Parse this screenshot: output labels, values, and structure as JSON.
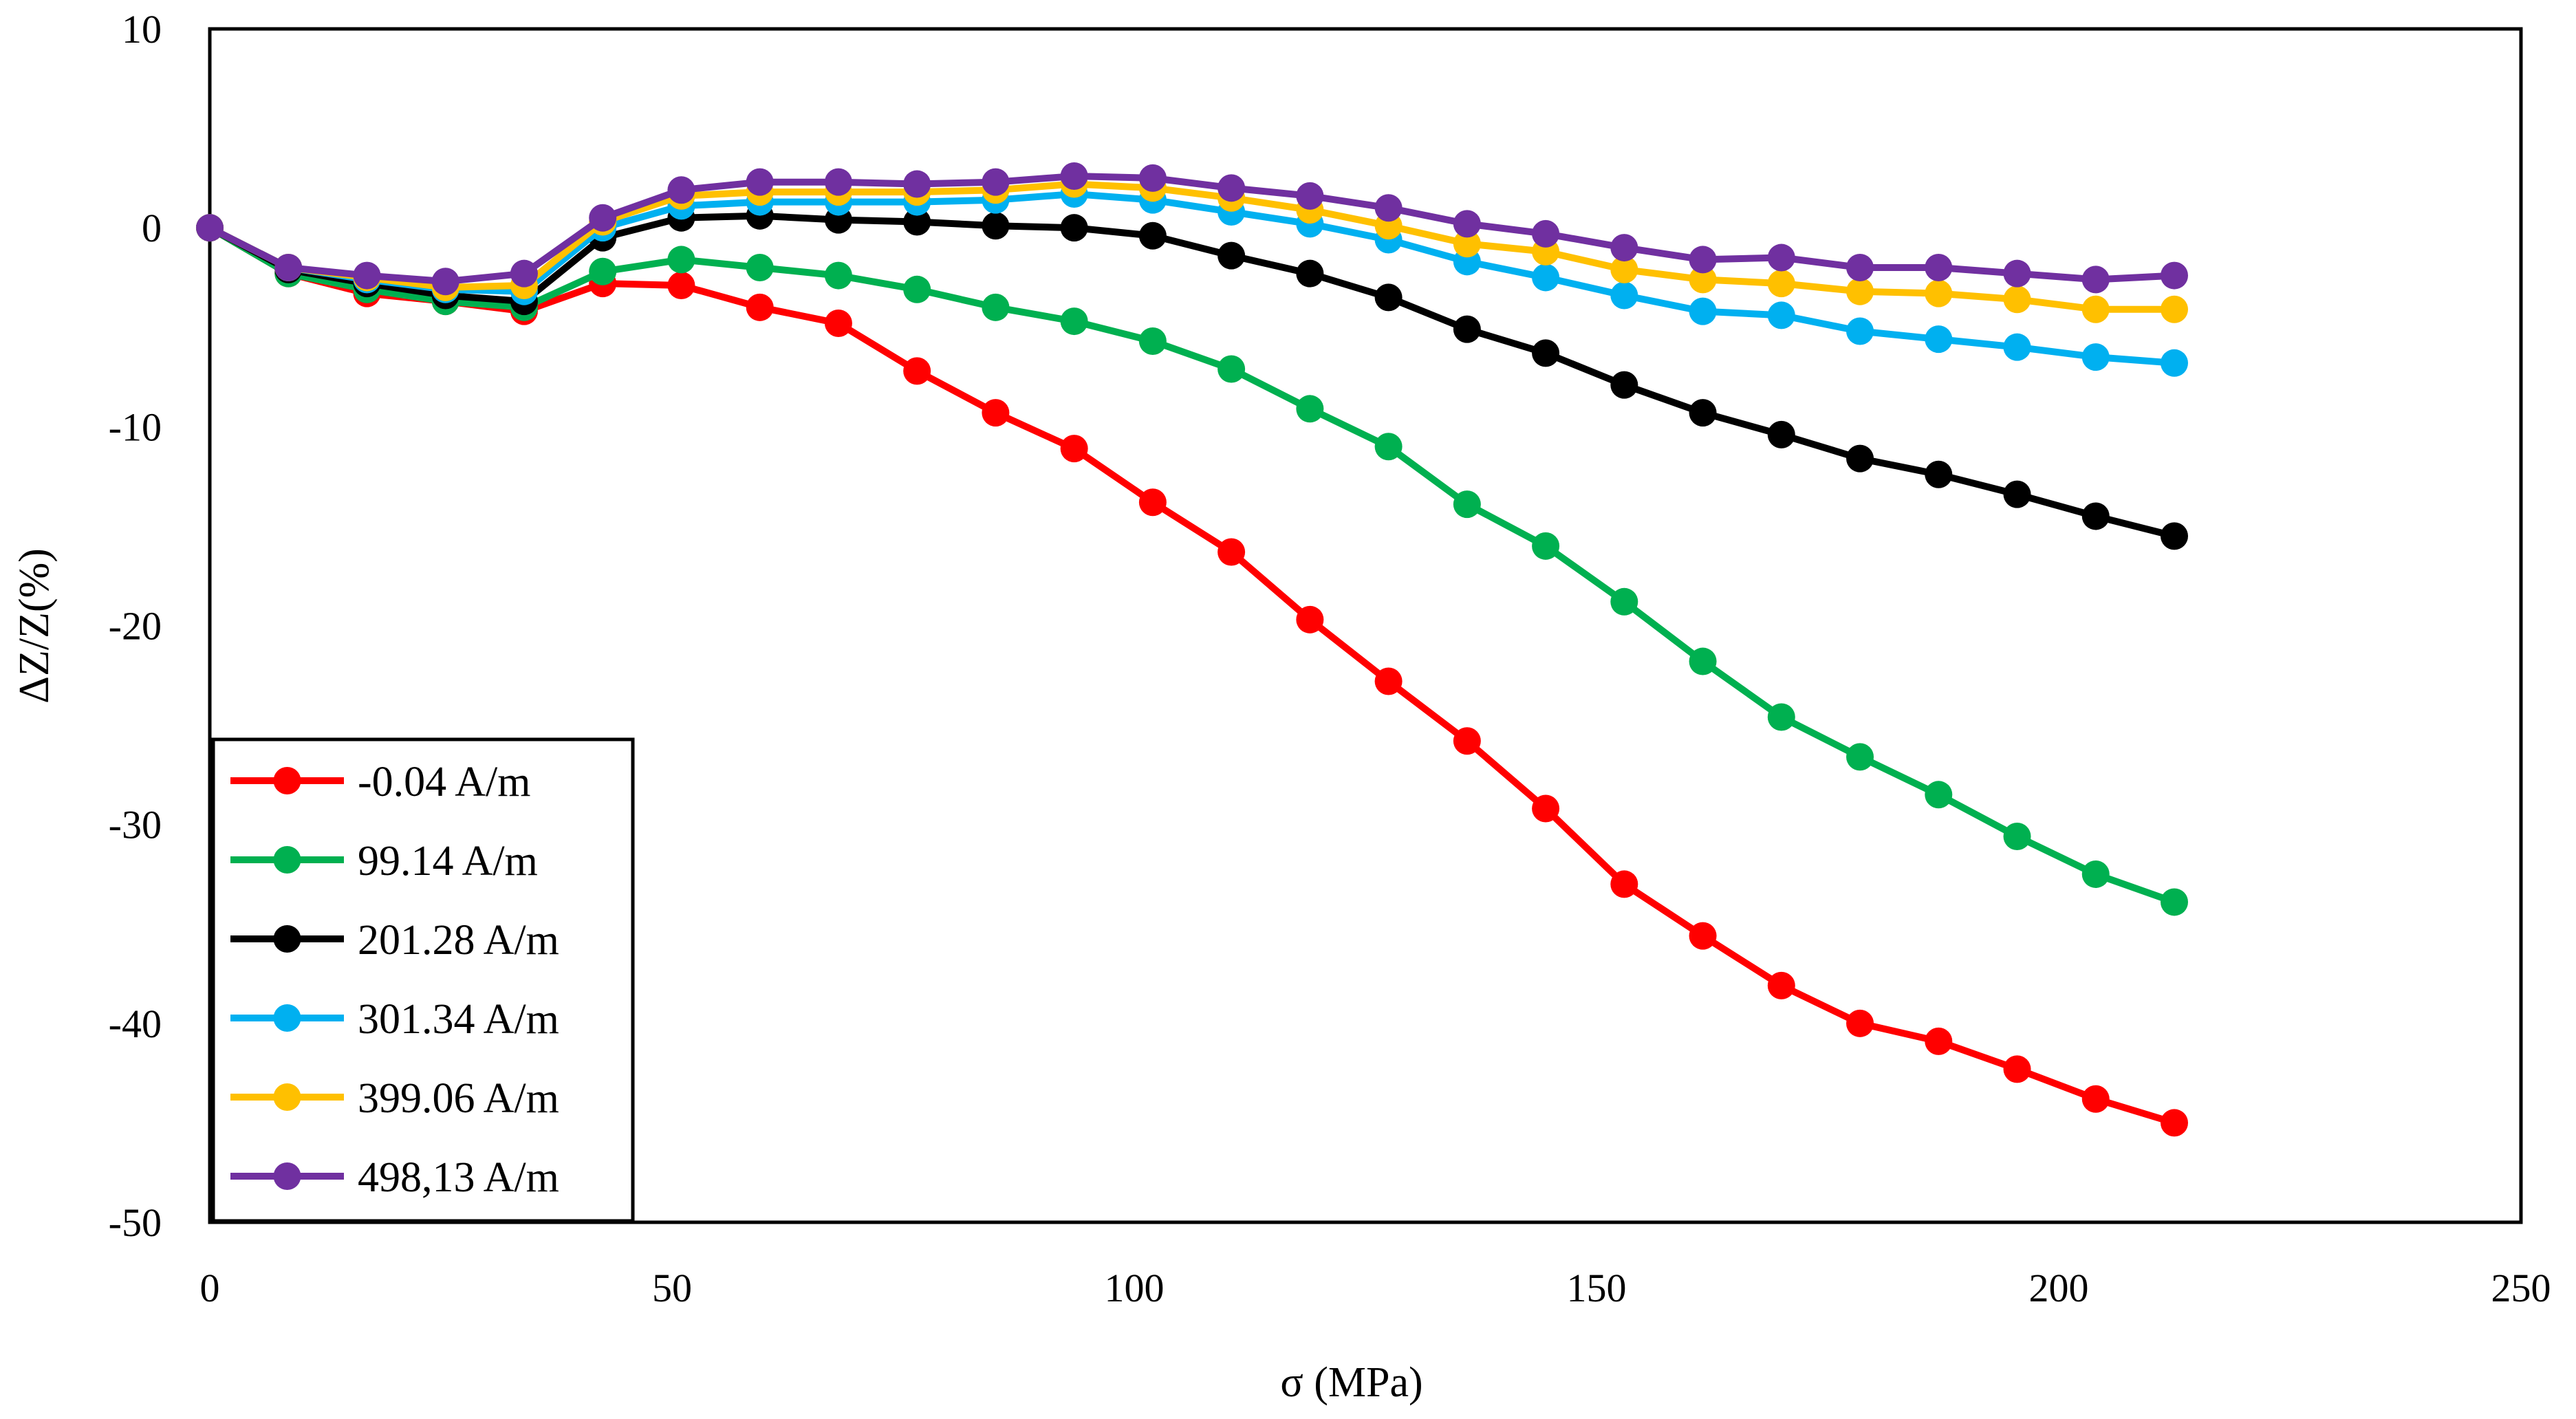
{
  "chart_data": {
    "type": "line",
    "xlabel": "σ (MPa)",
    "ylabel": "ΔZ/Z(%)",
    "xlim": [
      0,
      250
    ],
    "ylim": [
      -50,
      10
    ],
    "xticks": [
      0,
      50,
      100,
      150,
      200,
      250
    ],
    "yticks": [
      10,
      0,
      -10,
      -20,
      -30,
      -40,
      -50
    ],
    "xtick_labels": [
      "0",
      "50",
      "100",
      "150",
      "200",
      "250"
    ],
    "ytick_labels": [
      "10",
      "0",
      "-10",
      "-20",
      "-30",
      "-40",
      "-50"
    ],
    "grid": false,
    "legend_position": "bottom-left",
    "x": [
      0,
      8.5,
      17,
      25.5,
      34,
      42.5,
      51,
      59.5,
      68,
      76.5,
      85,
      93.5,
      102,
      110.5,
      119,
      127.5,
      136,
      144.5,
      153,
      161.5,
      170,
      178.5,
      187,
      195.5,
      204,
      212.5
    ],
    "series": [
      {
        "name": "-0.04 A/m",
        "color": "#ff0000",
        "values": [
          0,
          -2.3,
          -3.3,
          -3.7,
          -4.2,
          -2.8,
          -2.9,
          -4.0,
          -4.8,
          -7.2,
          -9.3,
          -11.1,
          -13.8,
          -16.3,
          -19.7,
          -22.8,
          -25.8,
          -29.2,
          -33.0,
          -35.6,
          -38.1,
          -40.0,
          -40.9,
          -42.3,
          -43.8,
          -45.0
        ]
      },
      {
        "name": "99.14 A/m",
        "color": "#00b050",
        "values": [
          0,
          -2.3,
          -3.1,
          -3.7,
          -4.0,
          -2.2,
          -1.6,
          -2.0,
          -2.4,
          -3.1,
          -4.0,
          -4.7,
          -5.7,
          -7.1,
          -9.1,
          -11.0,
          -13.9,
          -16.0,
          -18.8,
          -21.8,
          -24.6,
          -26.6,
          -28.5,
          -30.6,
          -32.5,
          -33.9
        ]
      },
      {
        "name": "201.28 A/m",
        "color": "#000000",
        "values": [
          0,
          -2.1,
          -2.8,
          -3.4,
          -3.7,
          -0.5,
          0.5,
          0.6,
          0.4,
          0.3,
          0.1,
          0.0,
          -0.4,
          -1.4,
          -2.3,
          -3.5,
          -5.1,
          -6.3,
          -7.9,
          -9.3,
          -10.4,
          -11.6,
          -12.4,
          -13.4,
          -14.5,
          -15.5
        ]
      },
      {
        "name": "301.34 A/m",
        "color": "#00b0f0",
        "values": [
          0,
          -2.0,
          -2.6,
          -3.1,
          -3.2,
          0.0,
          1.1,
          1.3,
          1.3,
          1.3,
          1.4,
          1.7,
          1.4,
          0.8,
          0.2,
          -0.6,
          -1.7,
          -2.5,
          -3.4,
          -4.2,
          -4.4,
          -5.2,
          -5.6,
          -6.0,
          -6.5,
          -6.8
        ]
      },
      {
        "name": "399.06 A/m",
        "color": "#ffc000",
        "values": [
          0,
          -2.0,
          -2.5,
          -3.0,
          -2.9,
          0.3,
          1.6,
          1.8,
          1.8,
          1.8,
          1.9,
          2.2,
          2.0,
          1.5,
          0.9,
          0.1,
          -0.8,
          -1.2,
          -2.1,
          -2.6,
          -2.8,
          -3.2,
          -3.3,
          -3.6,
          -4.1,
          -4.1
        ]
      },
      {
        "name": "498,13 A/m",
        "color": "#7030a0",
        "values": [
          0,
          -2.0,
          -2.4,
          -2.7,
          -2.3,
          0.5,
          1.9,
          2.3,
          2.3,
          2.2,
          2.3,
          2.6,
          2.5,
          2.0,
          1.6,
          1.0,
          0.2,
          -0.3,
          -1.0,
          -1.6,
          -1.5,
          -2.0,
          -2.0,
          -2.3,
          -2.6,
          -2.4
        ]
      }
    ]
  }
}
